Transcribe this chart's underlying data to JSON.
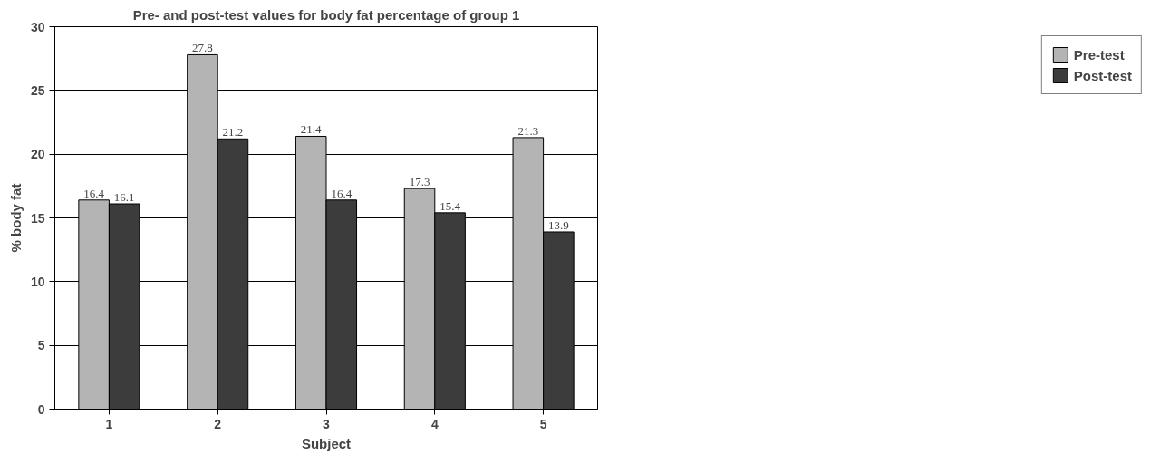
{
  "chart_data": {
    "type": "bar",
    "title": "Pre- and post-test values for body fat percentage of group 1",
    "xlabel": "Subject",
    "ylabel": "% body fat",
    "categories": [
      "1",
      "2",
      "3",
      "4",
      "5"
    ],
    "series": [
      {
        "name": "Pre-test",
        "color": "#b4b4b4",
        "values": [
          16.4,
          27.8,
          21.4,
          17.3,
          21.3
        ]
      },
      {
        "name": "Post-test",
        "color": "#3c3c3c",
        "values": [
          16.1,
          21.2,
          16.4,
          15.4,
          13.9
        ]
      }
    ],
    "ylim": [
      0,
      30
    ],
    "yticks": [
      0,
      5,
      10,
      15,
      20,
      25,
      30
    ],
    "grid": "y",
    "legend": "right",
    "data_labels": true
  }
}
